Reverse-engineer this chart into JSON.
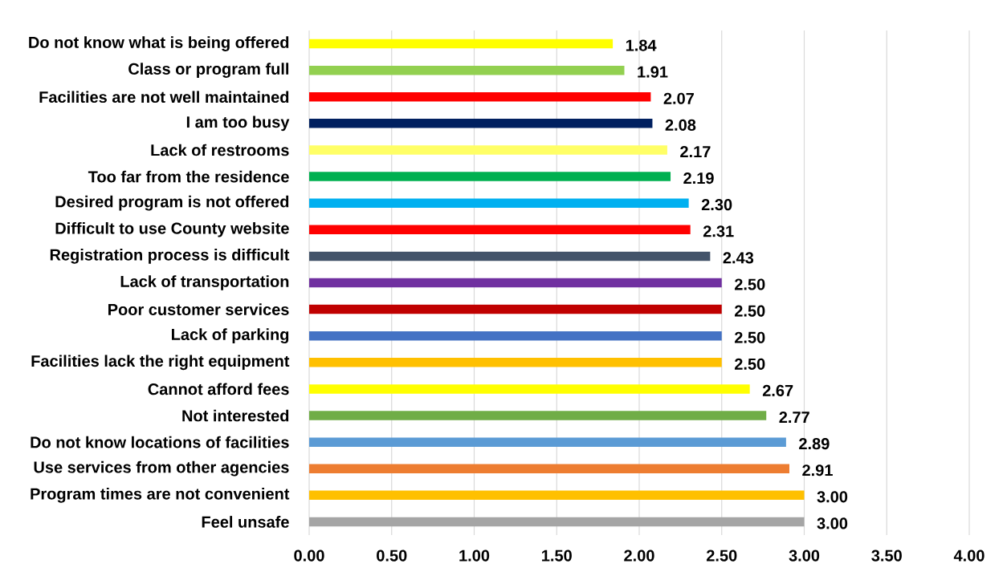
{
  "chart_data": {
    "type": "bar",
    "orientation": "horizontal",
    "categories": [
      "Do not know what is being offered",
      "Class or program full",
      "Facilities are not well maintained",
      "I am too busy",
      "Lack of restrooms",
      "Too far from the residence",
      "Desired program is not offered",
      "Difficult to use County website",
      "Registration process is difficult",
      "Lack of transportation",
      "Poor customer services",
      "Lack of parking",
      "Facilities lack the right equipment",
      "Cannot afford fees",
      "Not interested",
      "Do not know locations of facilities",
      "Use services from other agencies",
      "Program times are not convenient",
      "Feel unsafe"
    ],
    "values": [
      1.84,
      1.91,
      2.07,
      2.08,
      2.17,
      2.19,
      2.3,
      2.31,
      2.43,
      2.5,
      2.5,
      2.5,
      2.5,
      2.67,
      2.77,
      2.89,
      2.91,
      3.0,
      3.0
    ],
    "value_labels": [
      "1.84",
      "1.91",
      "2.07",
      "2.08",
      "2.17",
      "2.19",
      "2.30",
      "2.31",
      "2.43",
      "2.50",
      "2.50",
      "2.50",
      "2.50",
      "2.67",
      "2.77",
      "2.89",
      "2.91",
      "3.00",
      "3.00"
    ],
    "colors": [
      "#ffff00",
      "#92d050",
      "#ff0000",
      "#002060",
      "#ffff66",
      "#00b050",
      "#00b0f0",
      "#ff0000",
      "#44546a",
      "#7030a0",
      "#c00000",
      "#4472c4",
      "#ffc000",
      "#ffff00",
      "#70ad47",
      "#5b9bd5",
      "#ed7d31",
      "#ffc000",
      "#a5a5a5"
    ],
    "xlim": [
      0,
      4
    ],
    "xticks": [
      {
        "value": 0,
        "label": "0.00"
      },
      {
        "value": 0.5,
        "label": "0.50"
      },
      {
        "value": 1,
        "label": "1.00"
      },
      {
        "value": 1.5,
        "label": "1.50"
      },
      {
        "value": 2,
        "label": "2.00"
      },
      {
        "value": 2.5,
        "label": "2.50"
      },
      {
        "value": 3,
        "label": "3.00"
      },
      {
        "value": 3.5,
        "label": "3.50"
      },
      {
        "value": 4,
        "label": "4.00"
      }
    ],
    "grid": "x"
  }
}
